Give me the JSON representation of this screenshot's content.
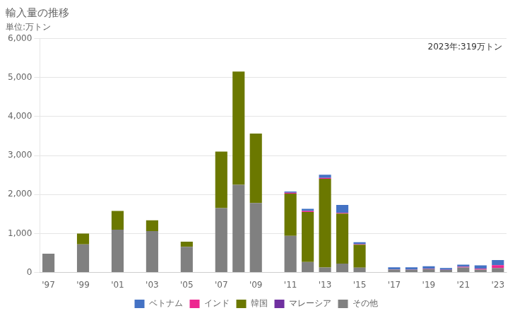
{
  "chart_data": {
    "type": "bar",
    "title": "輸入量の推移",
    "subtitle": "単位:万トン",
    "annotation": "2023年:319万トン",
    "stacked": true,
    "categories": [
      "'97",
      null,
      "'99",
      null,
      "'01",
      null,
      "'03",
      null,
      "'05",
      null,
      "'07",
      null,
      "'09",
      null,
      "'11",
      null,
      "'13",
      null,
      "'15",
      null,
      "'17",
      null,
      "'19",
      null,
      "'21",
      null,
      "'23"
    ],
    "series": [
      {
        "name": "ベトナム",
        "color": "#4472c4",
        "values": [
          0,
          0,
          0,
          0,
          0,
          0,
          0,
          0,
          0,
          0,
          0,
          0,
          0,
          0,
          30,
          50,
          80,
          200,
          50,
          0,
          55,
          60,
          65,
          45,
          55,
          90,
          130
        ]
      },
      {
        "name": "インド",
        "color": "#ed2690",
        "values": [
          0,
          0,
          0,
          0,
          0,
          0,
          0,
          0,
          0,
          0,
          0,
          0,
          0,
          0,
          25,
          30,
          25,
          20,
          10,
          0,
          5,
          5,
          5,
          5,
          15,
          20,
          75
        ]
      },
      {
        "name": "韓国",
        "color": "#6b7800",
        "values": [
          0,
          0,
          280,
          0,
          480,
          0,
          280,
          0,
          130,
          0,
          1450,
          2900,
          1780,
          0,
          1080,
          1280,
          2270,
          1280,
          590,
          0,
          0,
          0,
          0,
          0,
          0,
          0,
          0
        ]
      },
      {
        "name": "マレーシア",
        "color": "#7030a0",
        "values": [
          0,
          0,
          0,
          0,
          0,
          0,
          0,
          0,
          0,
          0,
          0,
          0,
          0,
          0,
          0,
          0,
          0,
          0,
          0,
          0,
          0,
          0,
          0,
          0,
          0,
          0,
          0
        ]
      },
      {
        "name": "その他",
        "color": "#808080",
        "values": [
          480,
          0,
          720,
          0,
          1100,
          0,
          1060,
          0,
          660,
          0,
          1650,
          2250,
          1780,
          0,
          940,
          270,
          130,
          230,
          125,
          0,
          75,
          70,
          90,
          65,
          130,
          75,
          114
        ]
      }
    ],
    "ylim": [
      0,
      6000
    ],
    "yticks": [
      0,
      {
        "value": 1000,
        "label": "1,000"
      },
      {
        "value": 2000,
        "label": "2,000"
      },
      {
        "value": 3000,
        "label": "3,000"
      },
      {
        "value": 4000,
        "label": "4,000"
      },
      {
        "value": 5000,
        "label": "5,000"
      },
      {
        "value": 6000,
        "label": "6,000"
      }
    ],
    "grid": true,
    "legend": "bottom"
  }
}
